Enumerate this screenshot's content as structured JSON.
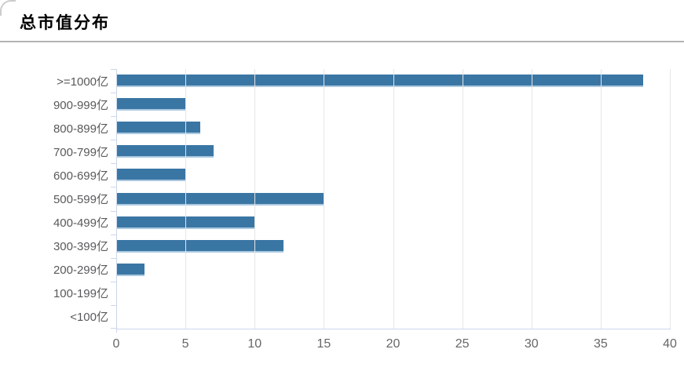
{
  "title": "总市值分布",
  "colors": {
    "bar": "#3a76a4",
    "bar_edge": "#aac8df",
    "grid": "#e6e6e6",
    "axis": "#ccd6eb",
    "y_label": "#58595b",
    "x_label": "#666666",
    "divider": "#b3b3b3",
    "title_text": "#000000"
  },
  "chart_data": {
    "type": "bar",
    "orientation": "horizontal",
    "title": "总市值分布",
    "categories": [
      ">=1000亿",
      "900-999亿",
      "800-899亿",
      "700-799亿",
      "600-699亿",
      "500-599亿",
      "400-499亿",
      "300-399亿",
      "200-299亿",
      "100-199亿",
      "<100亿"
    ],
    "values": [
      38,
      5,
      6,
      7,
      5,
      15,
      10,
      12,
      2,
      0,
      0
    ],
    "xlabel": "",
    "ylabel": "",
    "xlim": [
      0,
      40
    ],
    "x_ticks": [
      0,
      5,
      10,
      15,
      20,
      25,
      30,
      35,
      40
    ],
    "grid": true,
    "legend": false
  }
}
